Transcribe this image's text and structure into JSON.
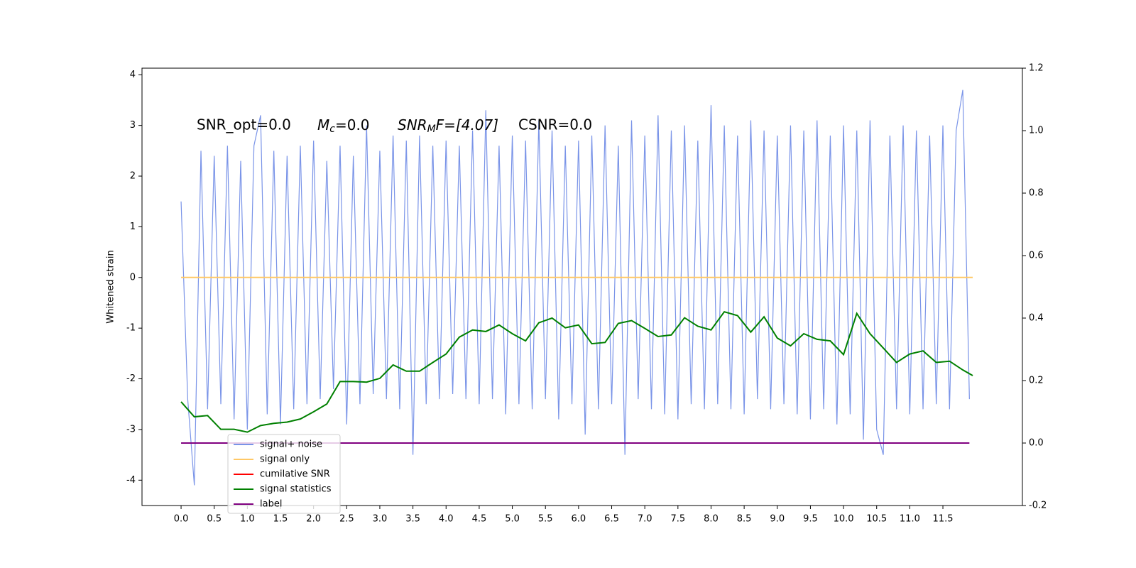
{
  "chart_data": {
    "type": "line",
    "ylabel": "Whitened strain",
    "annotations": [
      {
        "text": "SNR_opt=0.0"
      },
      {
        "base": "M",
        "sub": "c",
        "rest": "=0.0"
      },
      {
        "base": "SNR",
        "sub": "M",
        "rest": "F=[4.07]"
      },
      {
        "text": "CSNR=0.0"
      }
    ],
    "xlim": [
      -0.59,
      12.7
    ],
    "ylim": [
      -4.5,
      4.13
    ],
    "y2lim": [
      -0.2,
      1.2
    ],
    "xticks": [
      {
        "value": 0,
        "label": "0.0"
      },
      0.5,
      {
        "value": 1,
        "label": "1.0"
      },
      1.5,
      {
        "value": 2,
        "label": "2.0"
      },
      2.5,
      {
        "value": 3,
        "label": "3.0"
      },
      3.5,
      {
        "value": 4,
        "label": "4.0"
      },
      4.5,
      {
        "value": 5,
        "label": "5.0"
      },
      5.5,
      {
        "value": 6,
        "label": "6.0"
      },
      6.5,
      {
        "value": 7,
        "label": "7.0"
      },
      7.5,
      {
        "value": 8,
        "label": "8.0"
      },
      8.5,
      {
        "value": 9,
        "label": "9.0"
      },
      9.5,
      {
        "value": 10,
        "label": "10.0"
      },
      10.5,
      {
        "value": 11,
        "label": "11.0"
      },
      11.5
    ],
    "yticks": [
      -4,
      -3,
      -2,
      -1,
      0,
      1,
      2,
      3,
      4
    ],
    "y2ticks": [
      -0.2,
      {
        "value": 0,
        "label": "0.0"
      },
      0.2,
      0.4,
      0.6,
      0.8,
      {
        "value": 1,
        "label": "1.0"
      },
      1.2
    ],
    "series": [
      {
        "name": "signal+ noise",
        "color": "#7a94e8",
        "x": [
          0.0,
          0.1,
          0.2,
          0.3,
          0.4,
          0.5,
          0.6,
          0.7,
          0.8,
          0.9,
          1.0,
          1.1,
          1.2,
          1.3,
          1.4,
          1.5,
          1.6,
          1.7,
          1.8,
          1.9,
          2.0,
          2.1,
          2.2,
          2.3,
          2.4,
          2.5,
          2.6,
          2.7,
          2.8,
          2.9,
          3.0,
          3.1,
          3.2,
          3.3,
          3.4,
          3.5,
          3.6,
          3.7,
          3.8,
          3.9,
          4.0,
          4.1,
          4.2,
          4.3,
          4.4,
          4.5,
          4.6,
          4.7,
          4.8,
          4.9,
          5.0,
          5.1,
          5.2,
          5.3,
          5.4,
          5.5,
          5.6,
          5.7,
          5.8,
          5.9,
          6.0,
          6.1,
          6.2,
          6.3,
          6.4,
          6.5,
          6.6,
          6.7,
          6.8,
          6.9,
          7.0,
          7.1,
          7.2,
          7.3,
          7.4,
          7.5,
          7.6,
          7.7,
          7.8,
          7.9,
          8.0,
          8.1,
          8.2,
          8.3,
          8.4,
          8.5,
          8.6,
          8.7,
          8.8,
          8.9,
          9.0,
          9.1,
          9.2,
          9.3,
          9.4,
          9.5,
          9.6,
          9.7,
          9.8,
          9.9,
          10.0,
          10.1,
          10.2,
          10.3,
          10.4,
          10.5,
          10.6,
          10.7,
          10.8,
          10.9,
          11.0,
          11.1,
          11.2,
          11.3,
          11.4,
          11.5,
          11.6,
          11.7,
          11.8,
          11.9
        ],
        "values": [
          1.5,
          -2.4,
          -4.1,
          2.5,
          -2.6,
          2.4,
          -2.5,
          2.6,
          -2.8,
          2.3,
          -3.0,
          2.6,
          3.2,
          -2.7,
          2.5,
          -2.9,
          2.4,
          -2.6,
          2.6,
          -2.5,
          2.7,
          -2.4,
          2.3,
          -2.2,
          2.6,
          -2.9,
          2.4,
          -2.5,
          3.0,
          -2.3,
          2.5,
          -2.4,
          2.8,
          -2.6,
          2.7,
          -3.5,
          2.8,
          -2.5,
          2.6,
          -2.4,
          2.7,
          -2.3,
          2.6,
          -2.4,
          2.9,
          -2.5,
          3.3,
          -2.4,
          2.6,
          -2.7,
          2.8,
          -2.5,
          2.7,
          -2.6,
          3.1,
          -2.4,
          2.9,
          -2.8,
          2.6,
          -2.5,
          2.7,
          -3.1,
          2.8,
          -2.6,
          3.0,
          -2.5,
          2.6,
          -3.5,
          3.1,
          -2.4,
          2.8,
          -2.6,
          3.2,
          -2.7,
          2.9,
          -2.8,
          3.0,
          -2.5,
          2.7,
          -2.6,
          3.4,
          -2.5,
          3.0,
          -2.6,
          2.8,
          -2.7,
          3.1,
          -2.4,
          2.9,
          -2.6,
          2.8,
          -2.5,
          3.0,
          -2.7,
          2.9,
          -2.8,
          3.1,
          -2.6,
          2.8,
          -2.9,
          3.0,
          -2.7,
          2.9,
          -3.2,
          3.1,
          -3.0,
          -3.5,
          2.8,
          -2.6,
          3.0,
          -2.7,
          2.9,
          -2.6,
          2.8,
          -2.5,
          3.0,
          -2.6,
          2.9,
          3.7,
          -2.4
        ]
      },
      {
        "name": "signal only",
        "color": "#ffc866",
        "x": [
          0,
          11.95
        ],
        "values": [
          0,
          0
        ]
      },
      {
        "name": "cumilative SNR",
        "color": "#ff0000"
      },
      {
        "name": "signal statistics",
        "color": "#008000",
        "axis": "y2",
        "x": [
          0,
          0.2,
          0.4,
          0.6,
          0.8,
          1.0,
          1.2,
          1.4,
          1.6,
          1.8,
          2.0,
          2.2,
          2.4,
          2.6,
          2.8,
          3.0,
          3.2,
          3.4,
          3.6,
          3.8,
          4.0,
          4.2,
          4.4,
          4.6,
          4.8,
          5.0,
          5.2,
          5.4,
          5.6,
          5.8,
          6.0,
          6.2,
          6.4,
          6.6,
          6.8,
          7.0,
          7.2,
          7.4,
          7.6,
          7.8,
          8.0,
          8.2,
          8.4,
          8.6,
          8.8,
          9.0,
          9.2,
          9.4,
          9.6,
          9.8,
          10.0,
          10.2,
          10.4,
          10.6,
          10.8,
          11.0,
          11.2,
          11.4,
          11.6,
          11.8,
          11.95
        ],
        "values": [
          0.132,
          0.084,
          0.088,
          0.044,
          0.044,
          0.035,
          0.056,
          0.063,
          0.067,
          0.077,
          0.1,
          0.125,
          0.197,
          0.197,
          0.195,
          0.207,
          0.25,
          0.23,
          0.23,
          0.258,
          0.285,
          0.339,
          0.362,
          0.357,
          0.378,
          0.35,
          0.327,
          0.385,
          0.4,
          0.369,
          0.378,
          0.318,
          0.322,
          0.383,
          0.392,
          0.367,
          0.341,
          0.346,
          0.401,
          0.374,
          0.362,
          0.42,
          0.408,
          0.355,
          0.404,
          0.336,
          0.311,
          0.35,
          0.332,
          0.327,
          0.283,
          0.415,
          0.35,
          0.304,
          0.258,
          0.285,
          0.295,
          0.258,
          0.262,
          0.234,
          0.216
        ]
      },
      {
        "name": "label",
        "color": "#800080",
        "axis": "y2",
        "x": [
          0,
          11.9
        ],
        "values": [
          0,
          0
        ]
      }
    ]
  }
}
